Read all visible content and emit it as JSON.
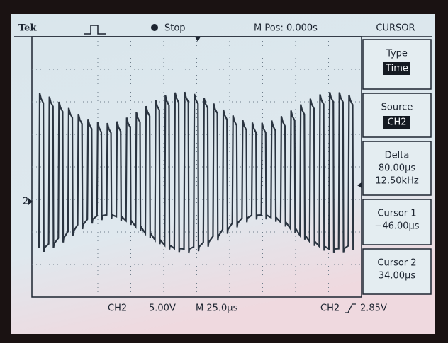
{
  "header": {
    "brand": "Tek",
    "state": "Stop",
    "position": "M Pos: 0.000s",
    "menu_title": "CURSOR"
  },
  "menu": [
    {
      "label": "Type",
      "value": "Time"
    },
    {
      "label": "Source",
      "value": "CH2"
    },
    {
      "label": "Delta",
      "lines": [
        "80.00µs",
        "12.50kHz"
      ]
    },
    {
      "label": "Cursor 1",
      "lines": [
        "−46.00µs"
      ]
    },
    {
      "label": "Cursor 2",
      "lines": [
        "34.00µs"
      ]
    }
  ],
  "footer": {
    "channel": "CH2",
    "scale": "5.00V",
    "timebase": "M 25.0µs",
    "trigger_source": "CH2",
    "trigger_level": "2.85V"
  },
  "channel_marker": "2"
}
